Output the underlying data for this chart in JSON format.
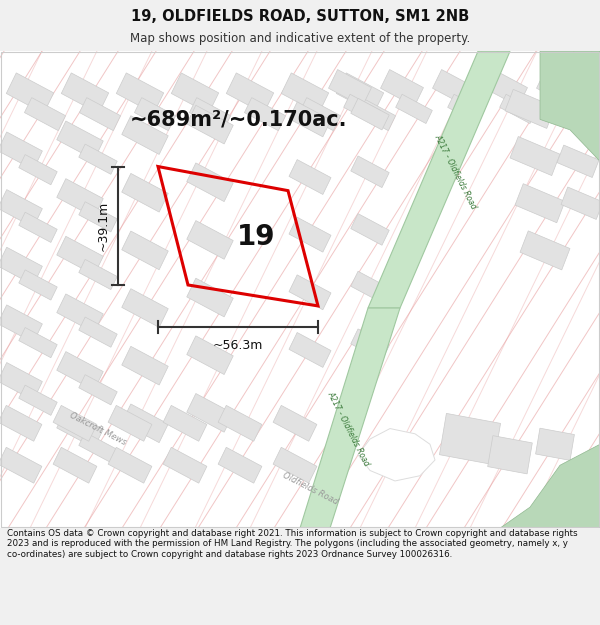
{
  "title": "19, OLDFIELDS ROAD, SUTTON, SM1 2NB",
  "subtitle": "Map shows position and indicative extent of the property.",
  "area_text": "~689m²/~0.170ac.",
  "property_number": "19",
  "dim_width": "~56.3m",
  "dim_height": "~39.1m",
  "footer": "Contains OS data © Crown copyright and database right 2021. This information is subject to Crown copyright and database rights 2023 and is reproduced with the permission of HM Land Registry. The polygons (including the associated geometry, namely x, y co-ordinates) are subject to Crown copyright and database rights 2023 Ordnance Survey 100026316.",
  "bg_color": "#f0f0f0",
  "map_bg": "#ffffff",
  "road_green_fill": "#c8e6c8",
  "road_green_edge": "#a0c8a0",
  "road_label_color": "#3a7a3a",
  "highlight_poly_color": "#dd0000",
  "dim_line_color": "#333333",
  "building_fill": "#e2e2e2",
  "building_edge": "#cccccc",
  "street_pink": "#e8a0a0",
  "footer_text_color": "#111111",
  "title_color": "#111111"
}
